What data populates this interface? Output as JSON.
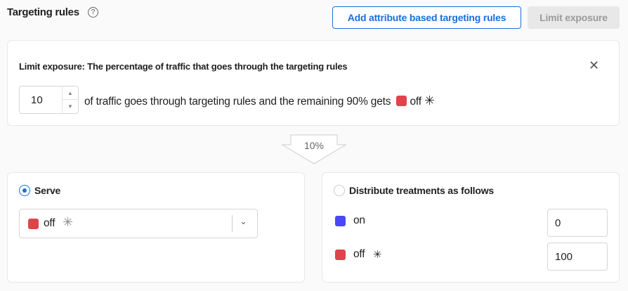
{
  "header": {
    "title": "Targeting rules",
    "help_icon": "question-circle-icon",
    "add_button": "Add attribute based targeting rules",
    "limit_button": "Limit exposure"
  },
  "limit_card": {
    "heading": "Limit exposure: The percentage of traffic that goes through the targeting rules",
    "value": "10",
    "text": "of traffic goes through targeting rules and the remaining 90% gets",
    "treatment": "off",
    "treatment_color": "#e0434a"
  },
  "arrow_label": "10%",
  "serve": {
    "label": "Serve",
    "selected": true,
    "value": "off",
    "color": "#e0434a"
  },
  "distribute": {
    "label": "Distribute treatments as follows",
    "selected": false,
    "rows": [
      {
        "name": "on",
        "color": "#4a47f5",
        "value": "0"
      },
      {
        "name": "off",
        "color": "#e0434a",
        "value": "100"
      }
    ]
  }
}
